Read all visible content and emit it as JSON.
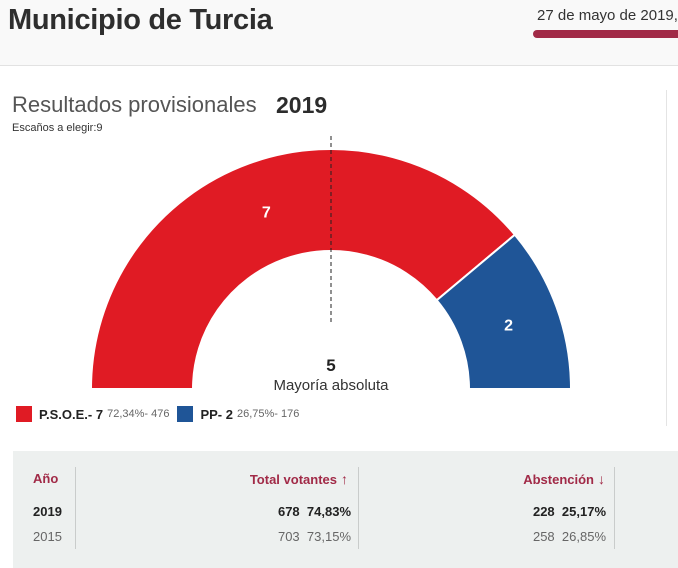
{
  "header": {
    "municipality": "Municipio de Turcia",
    "date": "27 de mayo de 2019,",
    "accent_color": "#a12a47"
  },
  "results": {
    "title": "Resultados provisionales",
    "year": "2019",
    "seats_label": "Escaños a elegir:9"
  },
  "chart_data": {
    "type": "pie",
    "variant": "semicircle-parliament",
    "total_seats": 9,
    "majority": {
      "value": "5",
      "label": "Mayoría absoluta"
    },
    "series": [
      {
        "name": "P.S.O.E.",
        "seats": 7,
        "seat_label": "7",
        "percent": "72,34%",
        "votes": "476",
        "color": "#e01b24"
      },
      {
        "name": "PP",
        "seats": 2,
        "seat_label": "2",
        "percent": "26,75%",
        "votes": "176",
        "color": "#1f5597"
      }
    ]
  },
  "legend": [
    {
      "label": "P.S.O.E.- 7",
      "detail": "72,34%- 476",
      "color": "#e01b24"
    },
    {
      "label": "PP- 2",
      "detail": "26,75%- 176",
      "color": "#1f5597"
    }
  ],
  "table": {
    "headers": {
      "year": "Año",
      "voters": "Total votantes",
      "abstention": "Abstención"
    },
    "arrows": {
      "voters": "↑",
      "abstention": "↓"
    },
    "rows": [
      {
        "year": "2019",
        "voters": "678",
        "voters_pct": "74,83%",
        "abst": "228",
        "abst_pct": "25,17%"
      },
      {
        "year": "2015",
        "voters": "703",
        "voters_pct": "73,15%",
        "abst": "258",
        "abst_pct": "26,85%"
      }
    ]
  }
}
